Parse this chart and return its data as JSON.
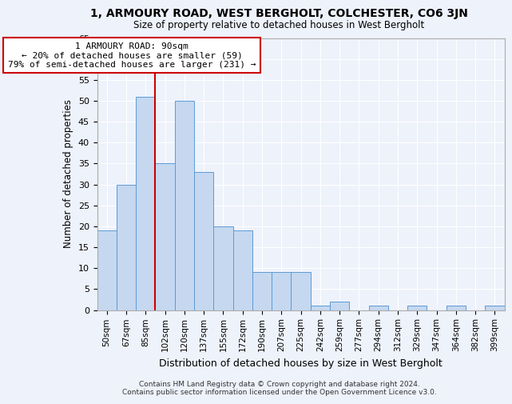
{
  "title": "1, ARMOURY ROAD, WEST BERGHOLT, COLCHESTER, CO6 3JN",
  "subtitle": "Size of property relative to detached houses in West Bergholt",
  "xlabel": "Distribution of detached houses by size in West Bergholt",
  "ylabel": "Number of detached properties",
  "footer_line1": "Contains HM Land Registry data © Crown copyright and database right 2024.",
  "footer_line2": "Contains public sector information licensed under the Open Government Licence v3.0.",
  "categories": [
    "50sqm",
    "67sqm",
    "85sqm",
    "102sqm",
    "120sqm",
    "137sqm",
    "155sqm",
    "172sqm",
    "190sqm",
    "207sqm",
    "225sqm",
    "242sqm",
    "259sqm",
    "277sqm",
    "294sqm",
    "312sqm",
    "329sqm",
    "347sqm",
    "364sqm",
    "382sqm",
    "399sqm"
  ],
  "values": [
    19,
    30,
    51,
    35,
    50,
    33,
    20,
    19,
    9,
    9,
    9,
    1,
    2,
    0,
    1,
    0,
    1,
    0,
    1,
    0,
    1
  ],
  "bar_color": "#c5d8f0",
  "bar_edge_color": "#5b9bd5",
  "red_line_index": 2,
  "annotation_text": "1 ARMOURY ROAD: 90sqm\n← 20% of detached houses are smaller (59)\n79% of semi-detached houses are larger (231) →",
  "annotation_box_color": "#ffffff",
  "annotation_box_edge_color": "#cc0000",
  "background_color": "#eef2fb",
  "grid_color": "#ffffff",
  "ylim": [
    0,
    65
  ],
  "yticks": [
    0,
    5,
    10,
    15,
    20,
    25,
    30,
    35,
    40,
    45,
    50,
    55,
    60,
    65
  ]
}
